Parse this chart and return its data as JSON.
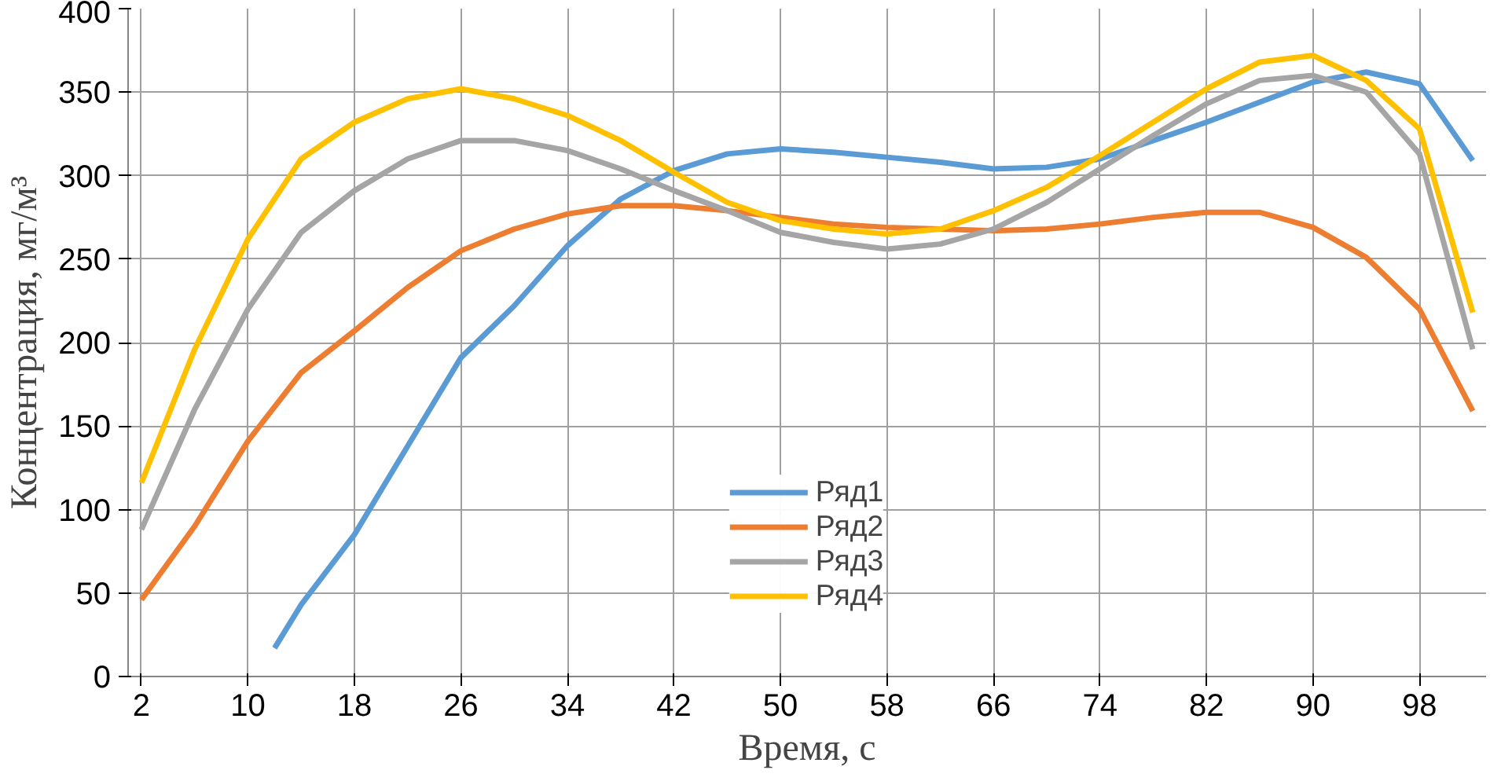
{
  "chart_data": {
    "type": "line",
    "xlabel": "Время, с",
    "ylabel": "Концентрация, мг/м³",
    "xlim": [
      1,
      103
    ],
    "xticks": [
      2,
      10,
      18,
      26,
      34,
      42,
      50,
      58,
      66,
      74,
      82,
      90,
      98
    ],
    "ylim": [
      0,
      400
    ],
    "yticks": [
      0,
      50,
      100,
      150,
      200,
      250,
      300,
      350,
      400
    ],
    "grid": true,
    "legend": "bottom",
    "marker": "none",
    "line_style": "solid",
    "series": [
      {
        "name": "Ряд1",
        "color": "#5b9bd5",
        "x": [
          12,
          14,
          18,
          22,
          26,
          30,
          34,
          38,
          42,
          46,
          50,
          54,
          58,
          62,
          66,
          70,
          74,
          78,
          82,
          86,
          90,
          94,
          98,
          102
        ],
        "values": [
          17,
          43,
          85,
          138,
          191,
          222,
          258,
          286,
          303,
          313,
          316,
          314,
          311,
          308,
          304,
          305,
          310,
          321,
          332,
          344,
          356,
          362,
          355,
          309
        ]
      },
      {
        "name": "Ряд2",
        "color": "#ed7d31",
        "x": [
          2,
          6,
          10,
          14,
          18,
          22,
          26,
          30,
          34,
          38,
          42,
          46,
          50,
          54,
          58,
          62,
          66,
          70,
          74,
          78,
          82,
          86,
          90,
          94,
          98,
          102
        ],
        "values": [
          46,
          90,
          141,
          182,
          207,
          233,
          255,
          268,
          277,
          282,
          282,
          279,
          275,
          271,
          269,
          268,
          267,
          268,
          271,
          275,
          278,
          278,
          269,
          251,
          220,
          159
        ]
      },
      {
        "name": "Ряд3",
        "color": "#a5a5a5",
        "x": [
          2,
          6,
          10,
          14,
          18,
          22,
          26,
          30,
          34,
          38,
          42,
          46,
          50,
          54,
          58,
          62,
          66,
          70,
          74,
          78,
          82,
          86,
          90,
          94,
          98,
          102
        ],
        "values": [
          88,
          160,
          220,
          266,
          291,
          310,
          321,
          321,
          315,
          304,
          291,
          279,
          266,
          260,
          256,
          259,
          268,
          284,
          304,
          324,
          343,
          357,
          360,
          350,
          313,
          196
        ]
      },
      {
        "name": "Ряд4",
        "color": "#ffc000",
        "x": [
          2,
          6,
          10,
          14,
          18,
          22,
          26,
          30,
          34,
          38,
          42,
          46,
          50,
          54,
          58,
          62,
          66,
          70,
          74,
          78,
          82,
          86,
          90,
          94,
          98,
          102
        ],
        "values": [
          116,
          196,
          262,
          310,
          332,
          346,
          352,
          346,
          336,
          321,
          302,
          284,
          273,
          268,
          265,
          268,
          279,
          293,
          312,
          332,
          352,
          368,
          372,
          357,
          328,
          218
        ]
      }
    ]
  }
}
